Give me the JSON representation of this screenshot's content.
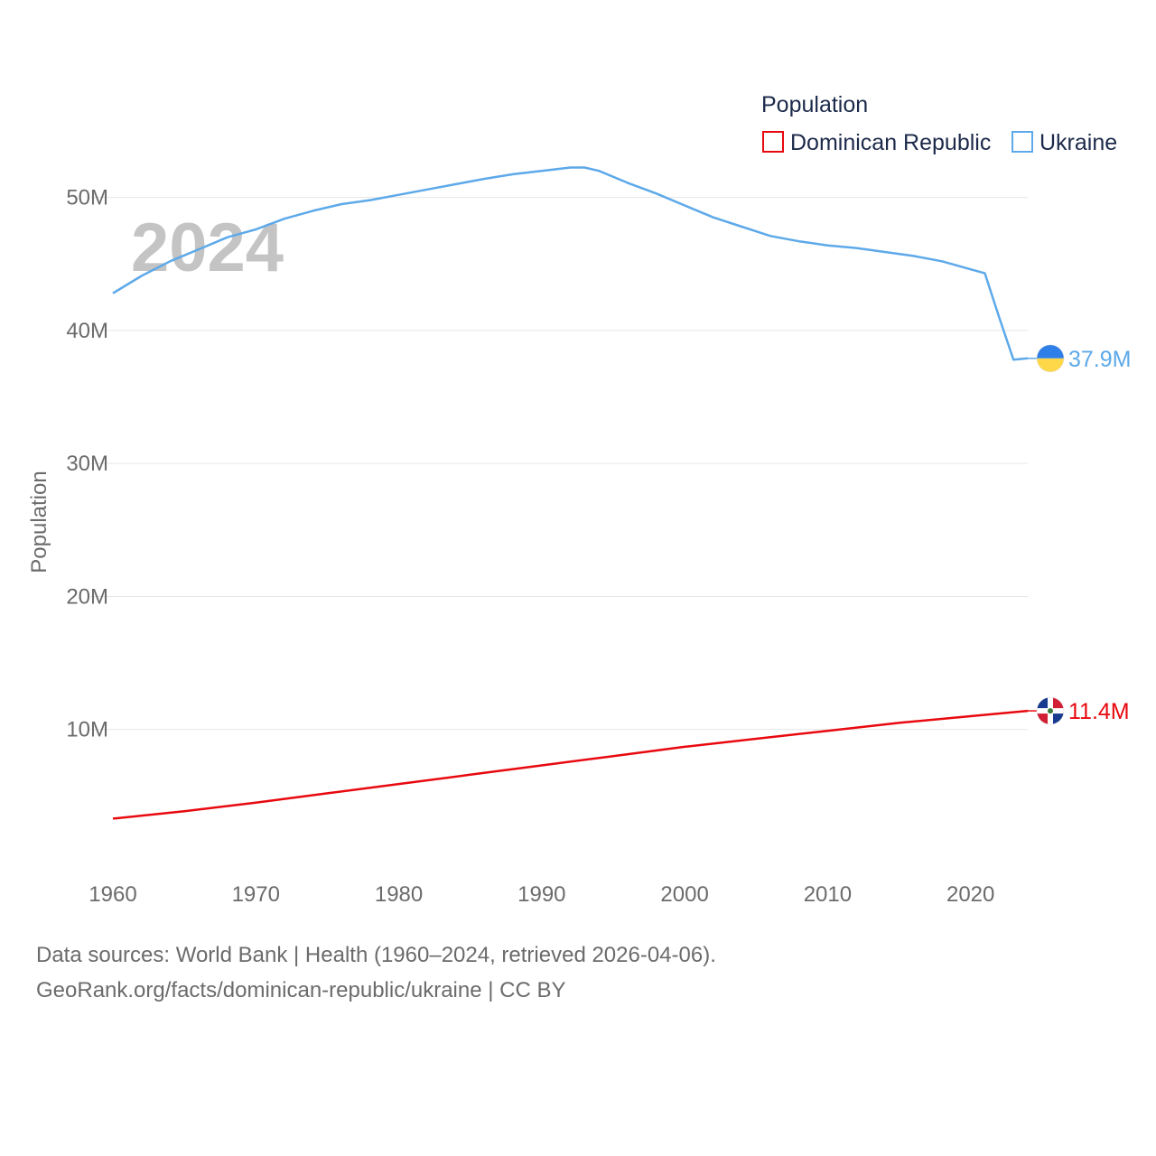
{
  "chart_data": {
    "type": "line",
    "legend_title": "Population",
    "year_label": "2024",
    "ylabel": "Population",
    "xlim": [
      1960,
      2024
    ],
    "ylim": [
      0,
      55000000
    ],
    "x_ticks": [
      1960,
      1970,
      1980,
      1990,
      2000,
      2010,
      2020
    ],
    "x_tick_labels": [
      "1960",
      "1970",
      "1980",
      "1990",
      "2000",
      "2010",
      "2020"
    ],
    "y_ticks": [
      10000000,
      20000000,
      30000000,
      40000000,
      50000000
    ],
    "y_tick_labels": [
      "10M",
      "20M",
      "30M",
      "40M",
      "50M"
    ],
    "grid": true,
    "legend_position": "top-right",
    "series": [
      {
        "name": "Dominican Republic",
        "color": "#e8090f",
        "end_label": "11.4M",
        "flag_icon": "dominican-republic-flag-icon",
        "x": [
          1960,
          1965,
          1970,
          1975,
          1980,
          1985,
          1990,
          1995,
          2000,
          2005,
          2010,
          2015,
          2020,
          2024
        ],
        "values": [
          3300000,
          3850000,
          4500000,
          5200000,
          5900000,
          6600000,
          7300000,
          8000000,
          8700000,
          9300000,
          9900000,
          10500000,
          11000000,
          11400000
        ]
      },
      {
        "name": "Ukraine",
        "color": "#5da9e9",
        "end_label": "37.9M",
        "flag_icon": "ukraine-flag-icon",
        "x": [
          1960,
          1962,
          1964,
          1966,
          1968,
          1970,
          1972,
          1974,
          1976,
          1978,
          1980,
          1982,
          1984,
          1986,
          1988,
          1990,
          1992,
          1993,
          1994,
          1996,
          1998,
          2000,
          2002,
          2004,
          2006,
          2008,
          2010,
          2012,
          2014,
          2016,
          2018,
          2020,
          2021,
          2022,
          2023,
          2024
        ],
        "values": [
          42800000,
          44100000,
          45200000,
          46100000,
          47000000,
          47600000,
          48400000,
          49000000,
          49500000,
          49800000,
          50200000,
          50600000,
          51000000,
          51400000,
          51750000,
          52000000,
          52250000,
          52250000,
          52000000,
          51100000,
          50300000,
          49400000,
          48500000,
          47800000,
          47100000,
          46700000,
          46400000,
          46200000,
          45900000,
          45600000,
          45200000,
          44600000,
          44300000,
          41000000,
          37800000,
          37900000
        ]
      }
    ]
  },
  "source": {
    "line1": "Data sources: World Bank | Health (1960–2024, retrieved 2026-04-06).",
    "line2": "GeoRank.org/facts/dominican-republic/ukraine | CC BY"
  }
}
